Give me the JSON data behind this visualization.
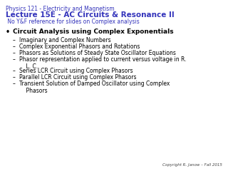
{
  "background_color": "#ffffff",
  "header_line1": "Physics 121 - Electricity and Magnetism",
  "header_line2": "Lecture 15E - AC Circuits & Resonance II",
  "header_line3": " No Y&F reference for slides on Complex analysis",
  "header_color1": "#3333bb",
  "header_color2": "#3333bb",
  "header_color3": "#3333bb",
  "bullet_title": "Circuit Analysis using Complex Exponentials",
  "sub_items": [
    "Imaginary and Complex Numbers",
    "Complex Exponential Phasors and Rotations",
    "Phasors as Solutions of Steady State Oscillator Equations",
    "Phasor representation applied to current versus voltage in R.\n    L. C.",
    "Series LCR Circuit using Complex Phasors",
    "Parallel LCR Circuit using Complex Phasors",
    "Transient Solution of Damped Oscillator using Complex\n    Phasors"
  ],
  "copyright": "Copyright R. Janow – Fall 2015",
  "font_family": "DejaVu Sans"
}
